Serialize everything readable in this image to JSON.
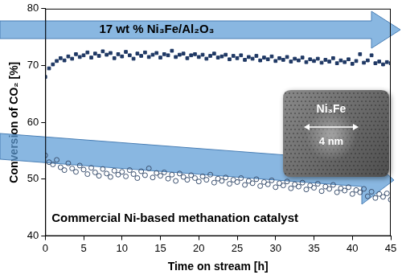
{
  "chart_data": {
    "type": "scatter",
    "x_label": "Time on stream [h]",
    "y_label": "Conversion of CO₂ [%]",
    "xlim": [
      0,
      45
    ],
    "xticks": [
      0,
      5,
      10,
      15,
      20,
      25,
      30,
      35,
      40,
      45
    ],
    "ylim": [
      40,
      80
    ],
    "yticks": [
      40,
      50,
      60,
      70,
      80
    ],
    "grid": false,
    "annotations": [
      "Ni₃Fe",
      "4 nm"
    ],
    "x": [
      0,
      0.5,
      1,
      1.5,
      2,
      2.5,
      3,
      3.5,
      4,
      4.5,
      5,
      5.5,
      6,
      6.5,
      7,
      7.5,
      8,
      8.5,
      9,
      9.5,
      10,
      10.5,
      11,
      11.5,
      12,
      12.5,
      13,
      13.5,
      14,
      14.5,
      15,
      15.5,
      16,
      16.5,
      17,
      17.5,
      18,
      18.5,
      19,
      19.5,
      20,
      20.5,
      21,
      21.5,
      22,
      22.5,
      23,
      23.5,
      24,
      24.5,
      25,
      25.5,
      26,
      26.5,
      27,
      27.5,
      28,
      28.5,
      29,
      29.5,
      30,
      30.5,
      31,
      31.5,
      32,
      32.5,
      33,
      33.5,
      34,
      34.5,
      35,
      35.5,
      36,
      36.5,
      37,
      37.5,
      38,
      38.5,
      39,
      39.5,
      40,
      40.5,
      41,
      41.5,
      42,
      42.5,
      43,
      43.5,
      44,
      44.5,
      45
    ],
    "series": [
      {
        "name": "17 wt % Ni₃Fe/Al₂O₃",
        "color": "#1f3864",
        "marker": "square",
        "values": [
          68.0,
          69.5,
          70.2,
          70.8,
          71.3,
          70.9,
          71.6,
          71.2,
          72.0,
          71.5,
          71.8,
          72.3,
          71.4,
          72.1,
          71.7,
          72.5,
          71.9,
          72.2,
          71.3,
          72.0,
          71.6,
          72.4,
          71.8,
          71.2,
          72.1,
          71.7,
          72.3,
          71.5,
          71.9,
          72.2,
          71.4,
          72.0,
          71.8,
          72.6,
          71.5,
          71.9,
          72.1,
          71.3,
          71.8,
          72.0,
          71.5,
          71.9,
          71.2,
          71.7,
          72.1,
          71.4,
          71.6,
          71.9,
          71.1,
          71.7,
          71.3,
          71.8,
          71.0,
          71.5,
          71.2,
          71.7,
          70.9,
          71.4,
          71.1,
          71.6,
          70.8,
          71.3,
          71.0,
          71.5,
          70.7,
          71.2,
          70.9,
          71.4,
          70.6,
          71.1,
          70.8,
          71.2,
          70.5,
          71.0,
          70.7,
          71.3,
          70.4,
          70.9,
          70.6,
          71.1,
          70.3,
          70.8,
          72.0,
          70.5,
          70.9,
          71.8,
          70.4,
          70.7,
          70.2,
          70.6,
          70.4
        ]
      },
      {
        "name": "Commercial Ni-based methanation catalyst",
        "color": "#3a4f6e",
        "marker": "open circle",
        "values": [
          54.2,
          53.0,
          52.6,
          53.4,
          52.1,
          51.6,
          52.8,
          51.9,
          51.3,
          52.4,
          51.7,
          50.9,
          52.0,
          51.2,
          50.6,
          51.8,
          51.0,
          50.4,
          51.5,
          50.8,
          51.3,
          50.5,
          51.6,
          50.9,
          50.2,
          51.4,
          50.7,
          51.9,
          50.3,
          51.1,
          50.6,
          51.2,
          50.1,
          50.8,
          49.7,
          51.0,
          50.4,
          49.9,
          50.7,
          50.2,
          49.6,
          50.5,
          49.9,
          50.8,
          49.4,
          50.1,
          49.7,
          50.3,
          49.2,
          49.9,
          49.5,
          50.2,
          49.0,
          49.7,
          49.3,
          50.0,
          48.8,
          49.5,
          49.1,
          49.8,
          48.6,
          49.3,
          48.9,
          49.6,
          48.4,
          49.1,
          48.7,
          49.4,
          48.2,
          48.9,
          48.5,
          49.2,
          47.9,
          48.7,
          48.3,
          49.0,
          47.7,
          48.4,
          48.0,
          48.6,
          47.4,
          48.1,
          47.7,
          48.3,
          47.0,
          47.8,
          46.7,
          47.4,
          46.9,
          47.5,
          46.4
        ]
      }
    ]
  }
}
